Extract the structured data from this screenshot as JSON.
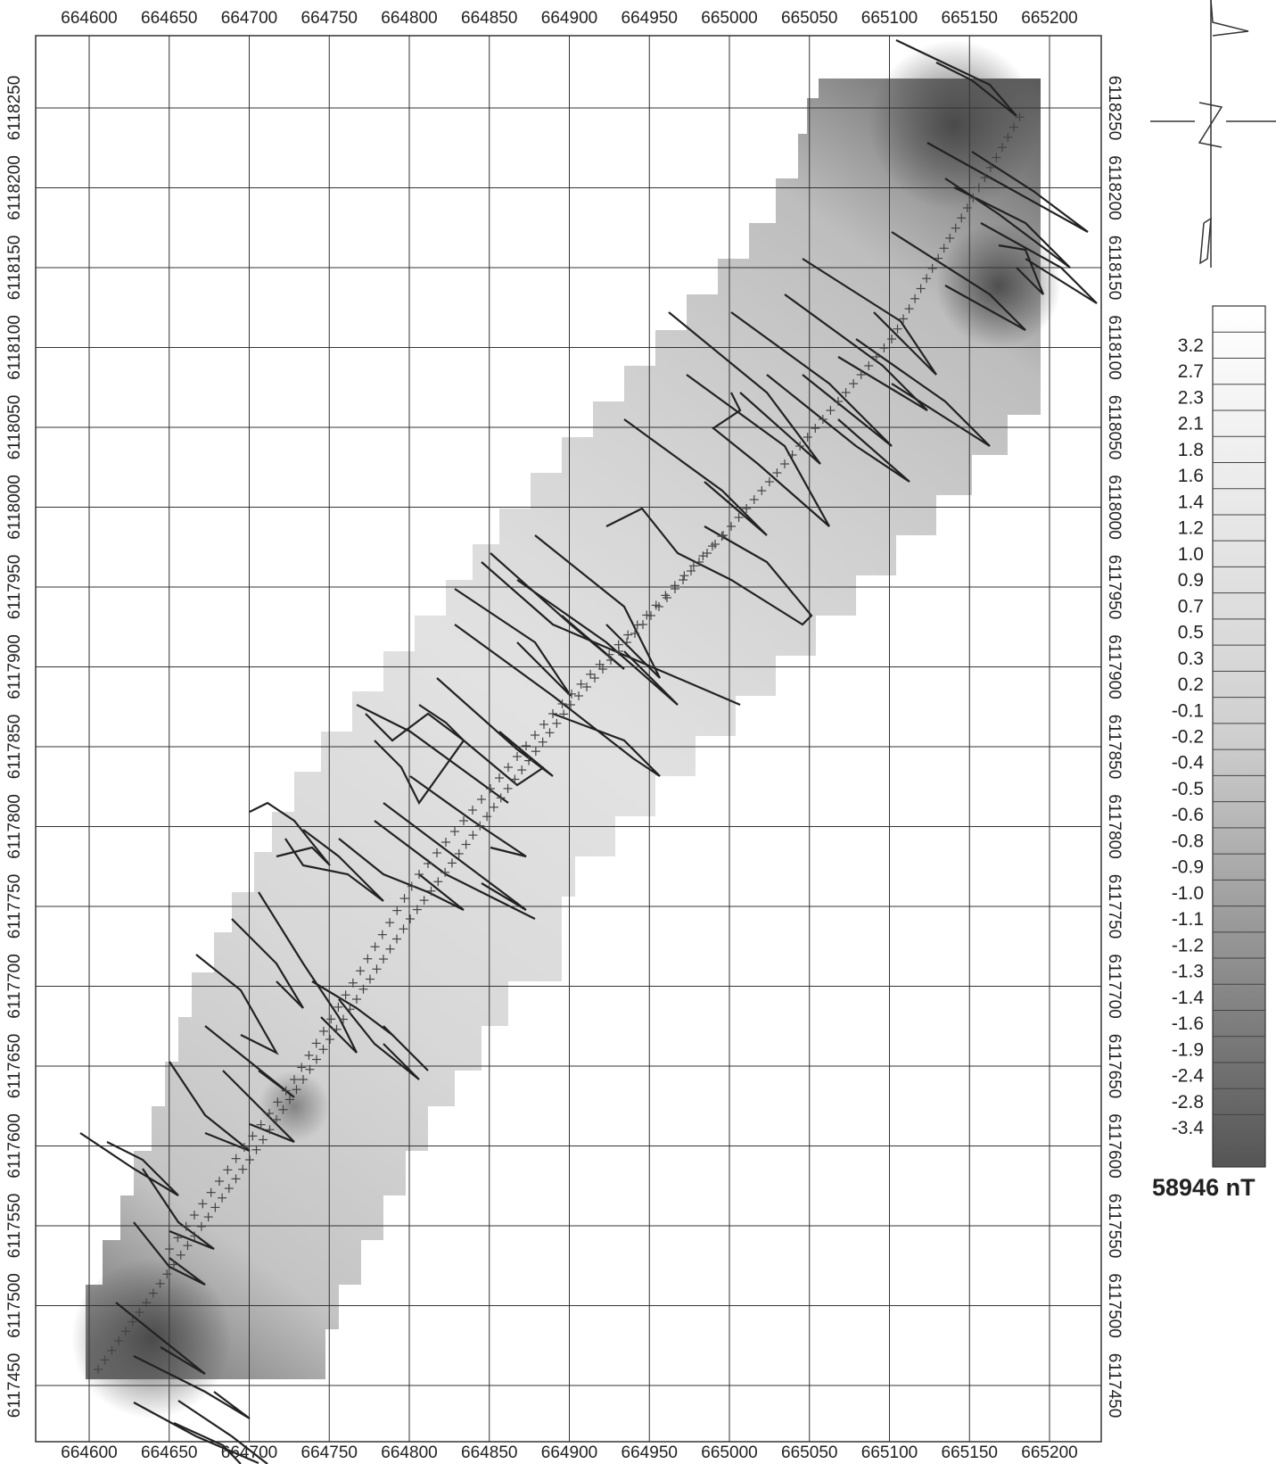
{
  "map": {
    "unit_label": "58946 nT",
    "x_ticks": [
      664600,
      664650,
      664700,
      664750,
      664800,
      664850,
      664900,
      664950,
      665000,
      665050,
      665100,
      665150,
      665200
    ],
    "y_ticks": [
      6117450,
      6117500,
      6117550,
      6117600,
      6117650,
      6117700,
      6117750,
      6117800,
      6117850,
      6117900,
      6117950,
      6118000,
      6118050,
      6118100,
      6118150,
      6118200,
      6118250
    ],
    "legend": [
      "3.2",
      "2.7",
      "2.3",
      "2.1",
      "1.8",
      "1.6",
      "1.4",
      "1.2",
      "1.0",
      "0.9",
      "0.7",
      "0.5",
      "0.3",
      "0.2",
      "-0.1",
      "-0.2",
      "-0.4",
      "-0.5",
      "-0.6",
      "-0.8",
      "-0.9",
      "-1.0",
      "-1.1",
      "-1.2",
      "-1.3",
      "-1.4",
      "-1.6",
      "-1.9",
      "-2.4",
      "-2.8",
      "-3.4"
    ],
    "colors": {
      "grid": "#333333",
      "track": "#222222",
      "survey_low": "#555555",
      "survey_high": "#f2f2f2"
    }
  }
}
